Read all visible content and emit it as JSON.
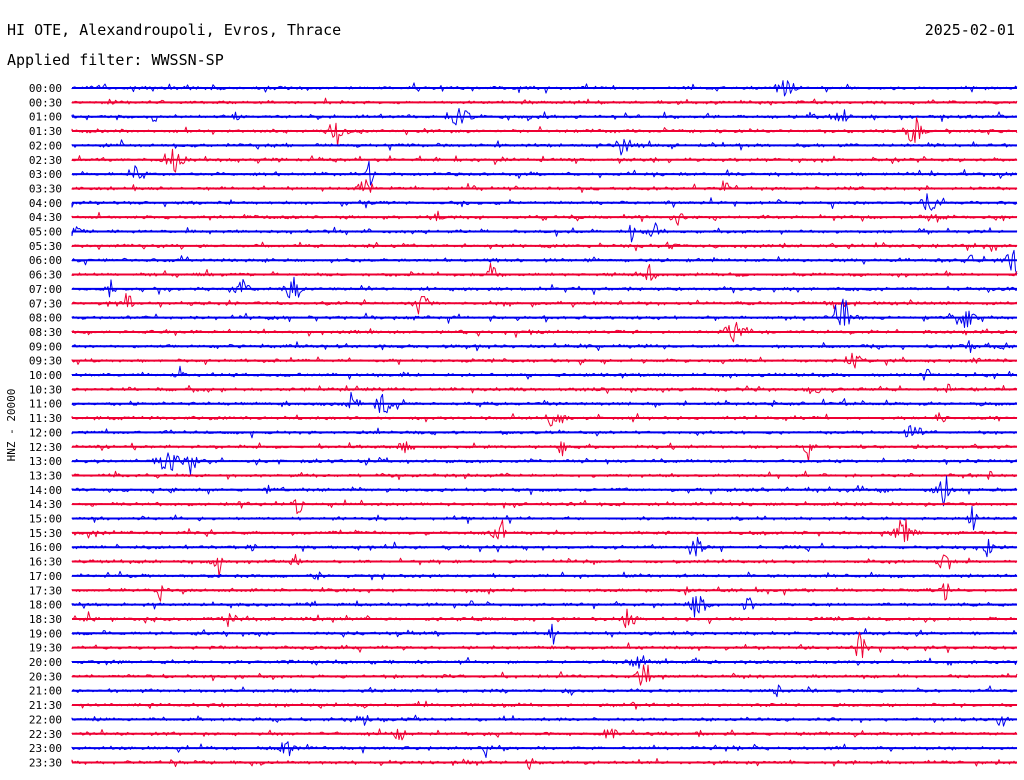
{
  "header": {
    "station": "HI OTE, Alexandroupoli, Evros, Thrace",
    "date": "2025-02-01",
    "filter_label": "Applied filter:",
    "filter_value": "WWSSN-SP"
  },
  "chart_data": {
    "type": "line",
    "title": "HI OTE, Alexandroupoli, Evros, Thrace",
    "date": "2025-02-01",
    "filter": "WWSSN-SP",
    "ylabel": "HNZ - 20000",
    "trace_colors": [
      "#0000ee",
      "#ee0033"
    ],
    "grid": false,
    "rows": [
      {
        "time": "00:00"
      },
      {
        "time": "00:30"
      },
      {
        "time": "01:00"
      },
      {
        "time": "01:30"
      },
      {
        "time": "02:00"
      },
      {
        "time": "02:30"
      },
      {
        "time": "03:00"
      },
      {
        "time": "03:30"
      },
      {
        "time": "04:00"
      },
      {
        "time": "04:30"
      },
      {
        "time": "05:00"
      },
      {
        "time": "05:30"
      },
      {
        "time": "06:00"
      },
      {
        "time": "06:30"
      },
      {
        "time": "07:00"
      },
      {
        "time": "07:30"
      },
      {
        "time": "08:00"
      },
      {
        "time": "08:30"
      },
      {
        "time": "09:00"
      },
      {
        "time": "09:30"
      },
      {
        "time": "10:00"
      },
      {
        "time": "10:30"
      },
      {
        "time": "11:00"
      },
      {
        "time": "11:30"
      },
      {
        "time": "12:00"
      },
      {
        "time": "12:30"
      },
      {
        "time": "13:00"
      },
      {
        "time": "13:30"
      },
      {
        "time": "14:00"
      },
      {
        "time": "14:30"
      },
      {
        "time": "15:00"
      },
      {
        "time": "15:30"
      },
      {
        "time": "16:00"
      },
      {
        "time": "16:30"
      },
      {
        "time": "17:00"
      },
      {
        "time": "17:30"
      },
      {
        "time": "18:00"
      },
      {
        "time": "18:30"
      },
      {
        "time": "19:00"
      },
      {
        "time": "19:30"
      },
      {
        "time": "20:00"
      },
      {
        "time": "20:30"
      },
      {
        "time": "21:00"
      },
      {
        "time": "21:30"
      },
      {
        "time": "22:00"
      },
      {
        "time": "22:30"
      },
      {
        "time": "23:00"
      },
      {
        "time": "23:30"
      }
    ]
  }
}
